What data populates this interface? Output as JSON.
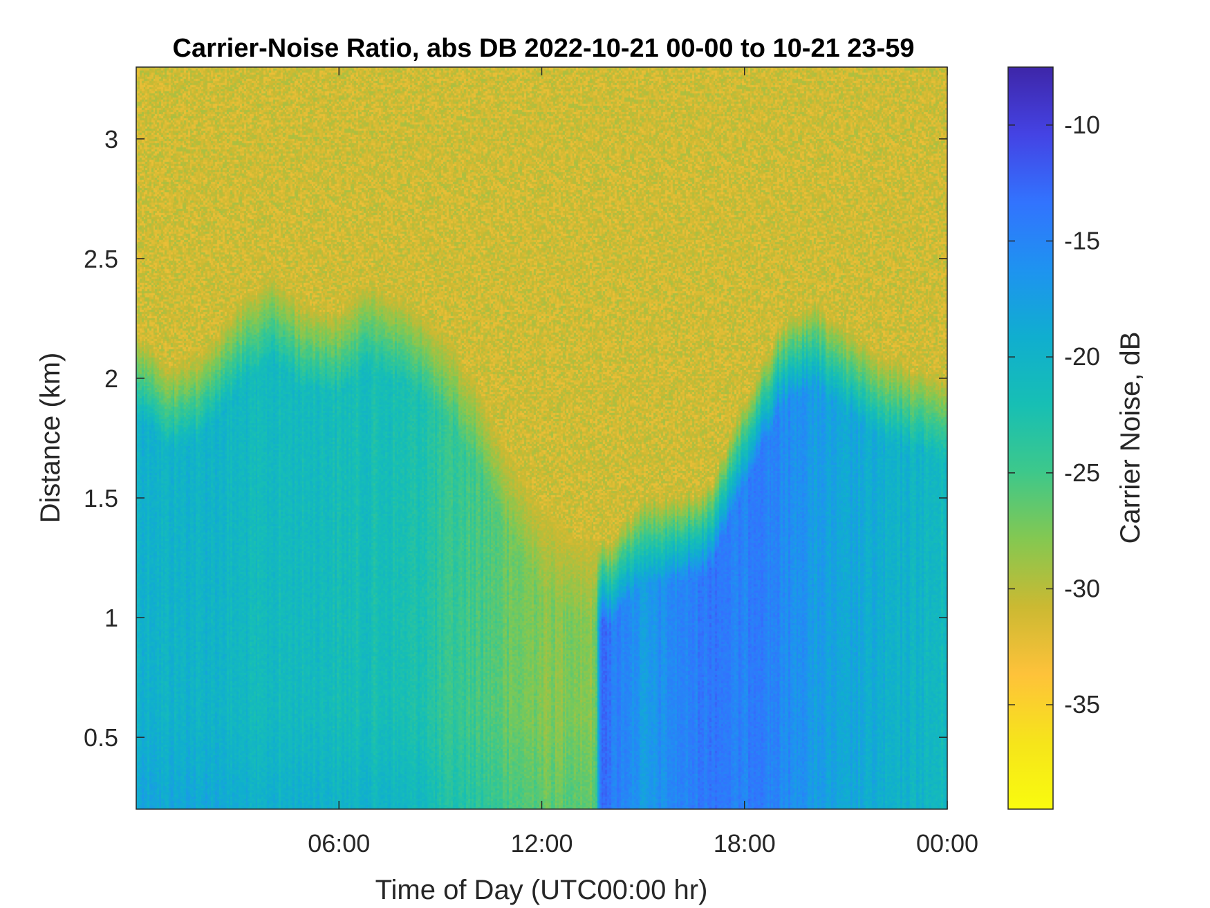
{
  "chart_data": {
    "type": "heatmap",
    "title": "Carrier-Noise Ratio, abs DB 2022-10-21 00-00 to 10-21 23-59",
    "xlabel": "Time of Day (UTC00:00 hr)",
    "ylabel": "Distance (km)",
    "colorbar_label": "Carrier Noise, dB",
    "x_range_hours": [
      0,
      24
    ],
    "y_range_km": [
      0.2,
      3.3
    ],
    "x_ticks": [
      {
        "value": 6,
        "label": "06:00"
      },
      {
        "value": 12,
        "label": "12:00"
      },
      {
        "value": 18,
        "label": "18:00"
      },
      {
        "value": 24,
        "label": "00:00"
      }
    ],
    "y_ticks": [
      {
        "value": 0.5,
        "label": "0.5"
      },
      {
        "value": 1,
        "label": "1"
      },
      {
        "value": 1.5,
        "label": "1.5"
      },
      {
        "value": 2,
        "label": "2"
      },
      {
        "value": 2.5,
        "label": "2.5"
      },
      {
        "value": 3,
        "label": "3"
      }
    ],
    "colorbar_range": [
      -39.5,
      -7.5
    ],
    "colorbar_ticks": [
      {
        "value": -10,
        "label": "-10"
      },
      {
        "value": -15,
        "label": "-15"
      },
      {
        "value": -20,
        "label": "-20"
      },
      {
        "value": -25,
        "label": "-25"
      },
      {
        "value": -30,
        "label": "-30"
      },
      {
        "value": -35,
        "label": "-35"
      }
    ],
    "colormap": "parula",
    "colormap_stops": [
      "#3e26a8",
      "#4443e4",
      "#3273fe",
      "#1e93f0",
      "#10aecf",
      "#17bfb4",
      "#3dc88b",
      "#84c851",
      "#cbb932",
      "#fec23a",
      "#f6e41b",
      "#f9fb0e"
    ],
    "background_noise_db": -31,
    "boundary_top_km": [
      {
        "hour": 0,
        "km": 2.2
      },
      {
        "hour": 1,
        "km": 2.05
      },
      {
        "hour": 2,
        "km": 2.1
      },
      {
        "hour": 3,
        "km": 2.3
      },
      {
        "hour": 4,
        "km": 2.42
      },
      {
        "hour": 5,
        "km": 2.3
      },
      {
        "hour": 6,
        "km": 2.28
      },
      {
        "hour": 7,
        "km": 2.4
      },
      {
        "hour": 8,
        "km": 2.32
      },
      {
        "hour": 9,
        "km": 2.2
      },
      {
        "hour": 10,
        "km": 2.0
      },
      {
        "hour": 11,
        "km": 1.7
      },
      {
        "hour": 12,
        "km": 1.45
      },
      {
        "hour": 13,
        "km": 1.35
      },
      {
        "hour": 14,
        "km": 1.3
      },
      {
        "hour": 15,
        "km": 1.5
      },
      {
        "hour": 16,
        "km": 1.5
      },
      {
        "hour": 17,
        "km": 1.55
      },
      {
        "hour": 18,
        "km": 1.9
      },
      {
        "hour": 19,
        "km": 2.2
      },
      {
        "hour": 20,
        "km": 2.32
      },
      {
        "hour": 21,
        "km": 2.2
      },
      {
        "hour": 22,
        "km": 2.1
      },
      {
        "hour": 23,
        "km": 2.05
      },
      {
        "hour": 24,
        "km": 2.0
      }
    ],
    "core_snr_db": [
      {
        "hour": 0,
        "db": -20
      },
      {
        "hour": 2,
        "db": -20
      },
      {
        "hour": 4,
        "db": -21
      },
      {
        "hour": 6,
        "db": -21.5
      },
      {
        "hour": 8,
        "db": -22
      },
      {
        "hour": 10,
        "db": -25
      },
      {
        "hour": 12,
        "db": -28
      },
      {
        "hour": 13.6,
        "db": -28
      },
      {
        "hour": 13.75,
        "db": -13
      },
      {
        "hour": 15,
        "db": -17
      },
      {
        "hour": 16,
        "db": -15
      },
      {
        "hour": 17,
        "db": -14
      },
      {
        "hour": 18,
        "db": -14.5
      },
      {
        "hour": 19,
        "db": -15
      },
      {
        "hour": 20,
        "db": -17
      },
      {
        "hour": 22,
        "db": -19
      },
      {
        "hour": 24,
        "db": -21
      }
    ]
  }
}
